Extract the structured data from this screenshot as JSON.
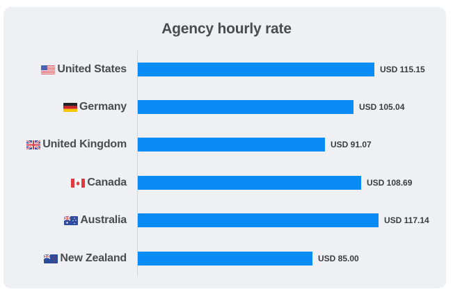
{
  "chart_data": {
    "type": "bar",
    "orientation": "horizontal",
    "title": "Agency hourly rate",
    "xlabel": "",
    "ylabel": "",
    "categories": [
      "United States",
      "Germany",
      "United Kingdom",
      "Canada",
      "Australia",
      "New Zealand"
    ],
    "values": [
      115.15,
      105.04,
      91.07,
      108.69,
      117.14,
      85.0
    ],
    "value_labels": [
      "USD 115.15",
      "USD 105.04",
      "USD 91.07",
      "USD 108.69",
      "USD 117.14",
      "USD 85.00"
    ],
    "currency": "USD",
    "grid": false,
    "legend": null,
    "bar_color": "#0a8cf7"
  },
  "title": "Agency hourly rate",
  "rows": [
    {
      "country": "United States",
      "flag": "us-flag-icon",
      "value": 115.15,
      "label": "USD 115.15"
    },
    {
      "country": "Germany",
      "flag": "de-flag-icon",
      "value": 105.04,
      "label": "USD 105.04"
    },
    {
      "country": "United Kingdom",
      "flag": "gb-flag-icon",
      "value": 91.07,
      "label": "USD 91.07"
    },
    {
      "country": "Canada",
      "flag": "ca-flag-icon",
      "value": 108.69,
      "label": "USD 108.69"
    },
    {
      "country": "Australia",
      "flag": "au-flag-icon",
      "value": 117.14,
      "label": "USD 117.14"
    },
    {
      "country": "New Zealand",
      "flag": "nz-flag-icon",
      "value": 85.0,
      "label": "USD 85.00"
    }
  ],
  "colors": {
    "bar": "#0a8cf7",
    "card": "#eff0f3",
    "text": "#4a4b50"
  }
}
